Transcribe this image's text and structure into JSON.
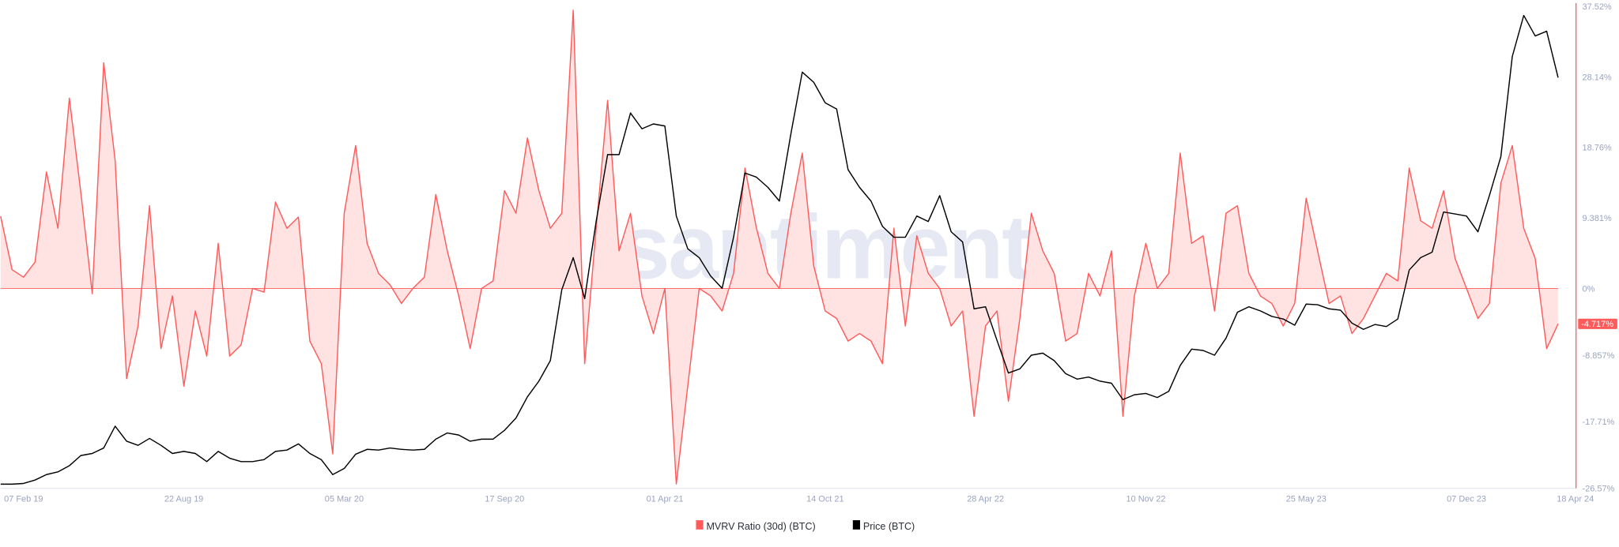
{
  "watermark": "santiment.",
  "chart_data": {
    "type": "line",
    "title": "",
    "xlabel": "",
    "ylabel": "",
    "grid": false,
    "legend_placement": "bottom-center",
    "colors": {
      "mvrv": "#ff5b5b",
      "mvrv_fill": "#ffe3e3",
      "price": "#000000",
      "axis_text": "#9aa4c0"
    },
    "x_ticks": [
      "07 Feb 19",
      "22 Aug 19",
      "05 Mar 20",
      "17 Sep 20",
      "01 Apr 21",
      "14 Oct 21",
      "28 Apr 22",
      "10 Nov 22",
      "25 May 23",
      "07 Dec 23",
      "18 Apr 24"
    ],
    "x_tick_dates": [
      "2019-02-07",
      "2019-08-22",
      "2020-03-05",
      "2020-09-17",
      "2021-04-01",
      "2021-10-14",
      "2022-04-28",
      "2022-11-10",
      "2023-05-25",
      "2023-12-07",
      "2024-04-18"
    ],
    "y_right_ticks": [
      "37.52%",
      "28.14%",
      "18.76%",
      "9.381%",
      "0%",
      "-8.857%",
      "-17.71%",
      "-26.57%"
    ],
    "y_right_tick_values": [
      37.52,
      28.14,
      18.76,
      9.381,
      0,
      -8.857,
      -17.71,
      -26.57
    ],
    "ylim": [
      -26.57,
      37.52
    ],
    "current_value_label": "-4.717%",
    "legend": [
      {
        "label": "MVRV Ratio (30d) (BTC)",
        "color": "#ff5b5b"
      },
      {
        "label": "Price (BTC)",
        "color": "#000000"
      }
    ],
    "x": [
      "2019-01-10",
      "2019-01-24",
      "2019-02-07",
      "2019-02-21",
      "2019-03-07",
      "2019-03-21",
      "2019-04-04",
      "2019-04-18",
      "2019-05-02",
      "2019-05-16",
      "2019-05-30",
      "2019-06-13",
      "2019-06-27",
      "2019-07-11",
      "2019-07-25",
      "2019-08-08",
      "2019-08-22",
      "2019-09-05",
      "2019-09-19",
      "2019-10-03",
      "2019-10-17",
      "2019-10-31",
      "2019-11-14",
      "2019-11-28",
      "2019-12-12",
      "2019-12-26",
      "2020-01-09",
      "2020-01-23",
      "2020-02-06",
      "2020-02-20",
      "2020-03-05",
      "2020-03-19",
      "2020-04-02",
      "2020-04-16",
      "2020-04-30",
      "2020-05-14",
      "2020-05-28",
      "2020-06-11",
      "2020-06-25",
      "2020-07-09",
      "2020-07-23",
      "2020-08-06",
      "2020-08-20",
      "2020-09-03",
      "2020-09-17",
      "2020-10-01",
      "2020-10-15",
      "2020-10-29",
      "2020-11-12",
      "2020-11-26",
      "2020-12-10",
      "2020-12-24",
      "2021-01-07",
      "2021-01-21",
      "2021-02-04",
      "2021-02-18",
      "2021-03-04",
      "2021-03-18",
      "2021-04-01",
      "2021-04-15",
      "2021-04-29",
      "2021-05-13",
      "2021-05-27",
      "2021-06-10",
      "2021-06-24",
      "2021-07-08",
      "2021-07-22",
      "2021-08-05",
      "2021-08-19",
      "2021-09-02",
      "2021-09-16",
      "2021-09-30",
      "2021-10-14",
      "2021-10-28",
      "2021-11-11",
      "2021-11-25",
      "2021-12-09",
      "2021-12-23",
      "2022-01-06",
      "2022-01-20",
      "2022-02-03",
      "2022-02-17",
      "2022-03-03",
      "2022-03-17",
      "2022-03-31",
      "2022-04-14",
      "2022-04-28",
      "2022-05-12",
      "2022-05-26",
      "2022-06-09",
      "2022-06-23",
      "2022-07-07",
      "2022-07-21",
      "2022-08-04",
      "2022-08-18",
      "2022-09-01",
      "2022-09-15",
      "2022-09-29",
      "2022-10-13",
      "2022-10-27",
      "2022-11-10",
      "2022-11-24",
      "2022-12-08",
      "2022-12-22",
      "2023-01-05",
      "2023-01-19",
      "2023-02-02",
      "2023-02-16",
      "2023-03-02",
      "2023-03-16",
      "2023-03-30",
      "2023-04-13",
      "2023-04-27",
      "2023-05-11",
      "2023-05-25",
      "2023-06-08",
      "2023-06-22",
      "2023-07-06",
      "2023-07-20",
      "2023-08-03",
      "2023-08-17",
      "2023-08-31",
      "2023-09-14",
      "2023-09-28",
      "2023-10-12",
      "2023-10-26",
      "2023-11-09",
      "2023-11-23",
      "2023-12-07",
      "2023-12-21",
      "2024-01-04",
      "2024-01-18",
      "2024-02-01",
      "2024-02-15",
      "2024-02-29",
      "2024-03-14",
      "2024-03-28"
    ],
    "series": [
      {
        "name": "MVRV Ratio (30d) (BTC)",
        "unit": "%",
        "axis": "right",
        "values": [
          9.6,
          2.5,
          1.5,
          3.5,
          15.5,
          8,
          25.3,
          12.8,
          -0.7,
          30,
          17,
          -12,
          -5,
          11,
          -8,
          -1,
          -13,
          -3,
          -9,
          6,
          -9,
          -7.5,
          0,
          -0.5,
          11.5,
          8,
          9.5,
          -7,
          -10,
          -22,
          10,
          19,
          6,
          2,
          0.5,
          -2,
          0,
          1.5,
          12.5,
          5,
          -1,
          -8,
          0,
          1,
          13,
          10,
          20,
          13,
          8,
          10,
          37,
          -10,
          8,
          25,
          5,
          10,
          -1,
          -6,
          0,
          -26,
          -13,
          0,
          -1,
          -3,
          2,
          16,
          8,
          2,
          0,
          10,
          18,
          3,
          -3,
          -4,
          -7,
          -6,
          -7,
          -10,
          8,
          -5,
          7,
          2,
          0,
          -5,
          -3,
          -17,
          -5,
          -3,
          -15,
          -4,
          10,
          5,
          2,
          -7,
          -6,
          2,
          -1,
          5,
          -17,
          -1,
          6,
          0,
          2,
          18,
          6,
          7,
          -3,
          10,
          11,
          2,
          -1,
          -2,
          -5,
          -2,
          12,
          5,
          -2,
          -1,
          -6,
          -4,
          -1,
          2,
          1,
          16,
          9,
          8,
          13,
          4,
          0,
          -4,
          -2,
          14,
          19,
          8,
          4,
          -8,
          -4.717
        ]
      },
      {
        "name": "Price (BTC)",
        "unit": "USD",
        "axis": "hidden",
        "values": [
          3500,
          3500,
          3600,
          4100,
          4900,
          5300,
          6200,
          7700,
          8000,
          8800,
          12000,
          9800,
          9200,
          10200,
          9200,
          8000,
          8300,
          8000,
          6800,
          8300,
          7300,
          6800,
          6800,
          7100,
          8300,
          8500,
          9400,
          8000,
          7100,
          4900,
          5800,
          7900,
          8600,
          8500,
          8800,
          8600,
          8500,
          8600,
          10100,
          11000,
          10700,
          9800,
          10100,
          10100,
          11400,
          13200,
          16300,
          18600,
          21600,
          32000,
          36700,
          30700,
          42000,
          51800,
          51800,
          57900,
          55600,
          56300,
          56000,
          42800,
          38000,
          36700,
          34000,
          32200,
          39700,
          49100,
          48500,
          47000,
          45000,
          54800,
          63900,
          62400,
          59400,
          58500,
          49600,
          47000,
          45000,
          41300,
          39700,
          39700,
          42800,
          42000,
          45800,
          40500,
          39000,
          29200,
          29500,
          24600,
          19800,
          20400,
          22400,
          22700,
          21600,
          19700,
          18900,
          19200,
          18600,
          18300,
          15900,
          16600,
          16800,
          16200,
          17100,
          20900,
          23300,
          23100,
          22400,
          24900,
          28700,
          29500,
          28900,
          28100,
          27700,
          26800,
          29900,
          29800,
          29200,
          29000,
          27100,
          26200,
          26900,
          26600,
          27700,
          34900,
          36700,
          37500,
          43400,
          43100,
          42800,
          40500,
          45800,
          51500,
          66200,
          72200,
          69200,
          69900,
          63100
        ]
      }
    ]
  }
}
